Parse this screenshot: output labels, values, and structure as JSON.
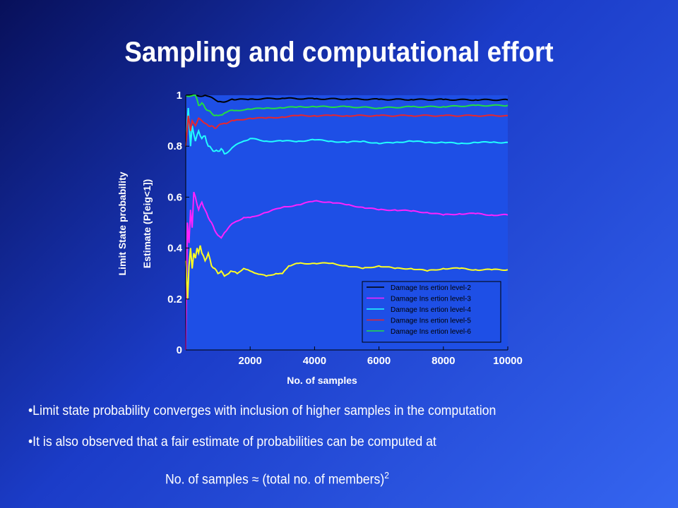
{
  "slide": {
    "title": "Sampling and computational effort",
    "bullets": [
      "•Limit state probability converges with inclusion of higher samples in the computation",
      "•It is also observed that a fair estimate of probabilities can be computed at"
    ],
    "formula": {
      "left": "No. of samples",
      "symbol": "≈",
      "right": "(total no. of members)",
      "exponent": "2"
    }
  },
  "chart_data": {
    "type": "line",
    "title": "",
    "xlabel": "No. of samples",
    "ylabel_line1": "Limit State probability",
    "ylabel_line2": "Estimate (P[eig<1])",
    "xlim": [
      0,
      10000
    ],
    "ylim": [
      0,
      1
    ],
    "xticks": [
      2000,
      4000,
      6000,
      8000,
      10000
    ],
    "yticks": [
      {
        "value": 0,
        "label": "0"
      },
      {
        "value": 0.2,
        "label": "0.2"
      },
      {
        "value": 0.4,
        "label": "0.4"
      },
      {
        "value": 0.6,
        "label": "0.6"
      },
      {
        "value": 0.8,
        "label": "0.8"
      },
      {
        "value": 1,
        "label": "1"
      }
    ],
    "grid": false,
    "legend_position": "bottom-right",
    "plot_background": "#1e4fe6",
    "series": [
      {
        "name": "Damage Ins ertion level-2",
        "color": "#000000",
        "x": [
          0,
          80,
          150,
          300,
          600,
          1000,
          1500,
          2000,
          3000,
          4000,
          5000,
          6000,
          7000,
          8000,
          9000,
          10000
        ],
        "y": [
          1.0,
          1.0,
          1.0,
          1.0,
          1.0,
          0.975,
          0.982,
          0.985,
          0.988,
          0.986,
          0.985,
          0.984,
          0.983,
          0.983,
          0.982,
          0.982
        ]
      },
      {
        "name": "Damage Ins ertion level-3",
        "color": "#ff22ff",
        "x": [
          0,
          50,
          100,
          150,
          200,
          250,
          300,
          400,
          500,
          600,
          700,
          800,
          900,
          1000,
          1100,
          1200,
          1500,
          1800,
          2000,
          2500,
          3000,
          3500,
          4000,
          4500,
          5000,
          5500,
          6000,
          6500,
          7000,
          7500,
          8000,
          8500,
          9000,
          9500,
          10000
        ],
        "y": [
          0.0,
          0.5,
          0.42,
          0.55,
          0.48,
          0.62,
          0.6,
          0.55,
          0.58,
          0.55,
          0.52,
          0.5,
          0.47,
          0.45,
          0.44,
          0.46,
          0.5,
          0.52,
          0.52,
          0.54,
          0.56,
          0.57,
          0.585,
          0.58,
          0.57,
          0.56,
          0.55,
          0.55,
          0.545,
          0.54,
          0.53,
          0.535,
          0.535,
          0.53,
          0.53
        ]
      },
      {
        "name": "Damage Ins ertion level-4",
        "color": "#22ffff",
        "x": [
          0,
          80,
          150,
          200,
          300,
          400,
          500,
          600,
          700,
          800,
          900,
          1000,
          1100,
          1200,
          1500,
          1800,
          2000,
          2500,
          3000,
          3500,
          4000,
          4500,
          5000,
          5500,
          6000,
          6500,
          7000,
          7500,
          8000,
          8500,
          9000,
          9500,
          10000
        ],
        "y": [
          0.8,
          0.95,
          0.8,
          0.88,
          0.82,
          0.86,
          0.83,
          0.84,
          0.8,
          0.79,
          0.78,
          0.78,
          0.79,
          0.77,
          0.8,
          0.82,
          0.83,
          0.82,
          0.82,
          0.82,
          0.825,
          0.82,
          0.815,
          0.82,
          0.81,
          0.815,
          0.82,
          0.815,
          0.815,
          0.81,
          0.815,
          0.815,
          0.815
        ]
      },
      {
        "name": "Damage Ins ertion level-5",
        "color": "#e8262e",
        "x": [
          0,
          80,
          150,
          200,
          300,
          400,
          500,
          600,
          700,
          800,
          900,
          1000,
          1200,
          1500,
          2000,
          2500,
          3000,
          3500,
          4000,
          4500,
          5000,
          6000,
          7000,
          8000,
          9000,
          10000
        ],
        "y": [
          0.8,
          0.92,
          0.86,
          0.9,
          0.88,
          0.91,
          0.9,
          0.89,
          0.88,
          0.88,
          0.87,
          0.88,
          0.89,
          0.9,
          0.91,
          0.91,
          0.915,
          0.92,
          0.92,
          0.92,
          0.92,
          0.92,
          0.92,
          0.92,
          0.92,
          0.92
        ]
      },
      {
        "name": "Damage Ins ertion level-6",
        "color": "#22dd44",
        "x": [
          0,
          300,
          400,
          500,
          600,
          700,
          800,
          900,
          1000,
          1200,
          1500,
          2000,
          2500,
          3000,
          3500,
          4000,
          5000,
          6000,
          7000,
          8000,
          9000,
          10000
        ],
        "y": [
          1.0,
          1.0,
          0.96,
          0.97,
          0.95,
          0.94,
          0.93,
          0.92,
          0.92,
          0.93,
          0.94,
          0.945,
          0.95,
          0.95,
          0.955,
          0.955,
          0.955,
          0.95,
          0.955,
          0.955,
          0.96,
          0.96
        ]
      },
      {
        "name": "",
        "color": "#ffff22",
        "no_legend": true,
        "x": [
          0,
          60,
          100,
          150,
          200,
          250,
          300,
          350,
          400,
          450,
          500,
          600,
          700,
          800,
          900,
          1000,
          1100,
          1200,
          1400,
          1600,
          1800,
          2000,
          2200,
          2500,
          2800,
          3000,
          3200,
          3500,
          4000,
          4500,
          5000,
          5500,
          6000,
          6500,
          7000,
          7500,
          8000,
          8500,
          9000,
          9500,
          10000
        ],
        "y": [
          0.35,
          0.2,
          0.33,
          0.4,
          0.32,
          0.38,
          0.36,
          0.4,
          0.38,
          0.41,
          0.38,
          0.35,
          0.38,
          0.33,
          0.32,
          0.3,
          0.31,
          0.29,
          0.31,
          0.3,
          0.32,
          0.31,
          0.3,
          0.29,
          0.3,
          0.3,
          0.33,
          0.34,
          0.34,
          0.34,
          0.33,
          0.32,
          0.33,
          0.32,
          0.32,
          0.31,
          0.32,
          0.32,
          0.315,
          0.315,
          0.315
        ]
      }
    ]
  }
}
